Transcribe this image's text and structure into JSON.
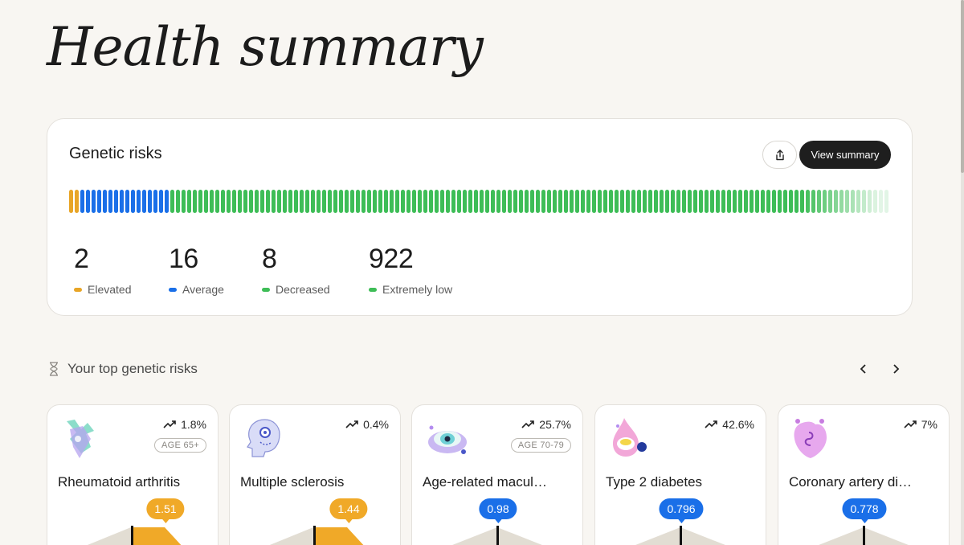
{
  "page": {
    "title": "Health summary"
  },
  "summary": {
    "title": "Genetic risks",
    "view_button": "View summary",
    "share_icon": "share-icon",
    "stats": [
      {
        "value": "2",
        "label": "Elevated",
        "color": "#e8a526"
      },
      {
        "value": "16",
        "label": "Average",
        "color": "#1a6fe8"
      },
      {
        "value": "8",
        "label": "Decreased",
        "color": "#3ebd57"
      },
      {
        "value": "922",
        "label": "Extremely low",
        "color": "#3ebd57"
      }
    ]
  },
  "top_risks": {
    "title": "Your top genetic risks",
    "icon": "hourglass-icon",
    "prev_icon": "chevron-left-icon",
    "next_icon": "chevron-right-icon",
    "cards": [
      {
        "name": "Rheumatoid arthritis",
        "pct": "1.8%",
        "age": "AGE 65+",
        "score": "1.51",
        "color": "#f0a928",
        "art": "hands-icon"
      },
      {
        "name": "Multiple sclerosis",
        "pct": "0.4%",
        "age": "",
        "score": "1.44",
        "color": "#f0a928",
        "art": "head-icon"
      },
      {
        "name": "Age-related macul…",
        "pct": "25.7%",
        "age": "AGE 70-79",
        "score": "0.98",
        "color": "#1a6fe8",
        "art": "eye-icon"
      },
      {
        "name": "Type 2 diabetes",
        "pct": "42.6%",
        "age": "",
        "score": "0.796",
        "color": "#1a6fe8",
        "art": "droplet-icon"
      },
      {
        "name": "Coronary artery di…",
        "pct": "7%",
        "age": "",
        "score": "0.778",
        "color": "#1a6fe8",
        "art": "heart-icon"
      }
    ]
  },
  "colors": {
    "elevated": "#e8a526",
    "average": "#1a6fe8",
    "low": "#3ebd57"
  }
}
